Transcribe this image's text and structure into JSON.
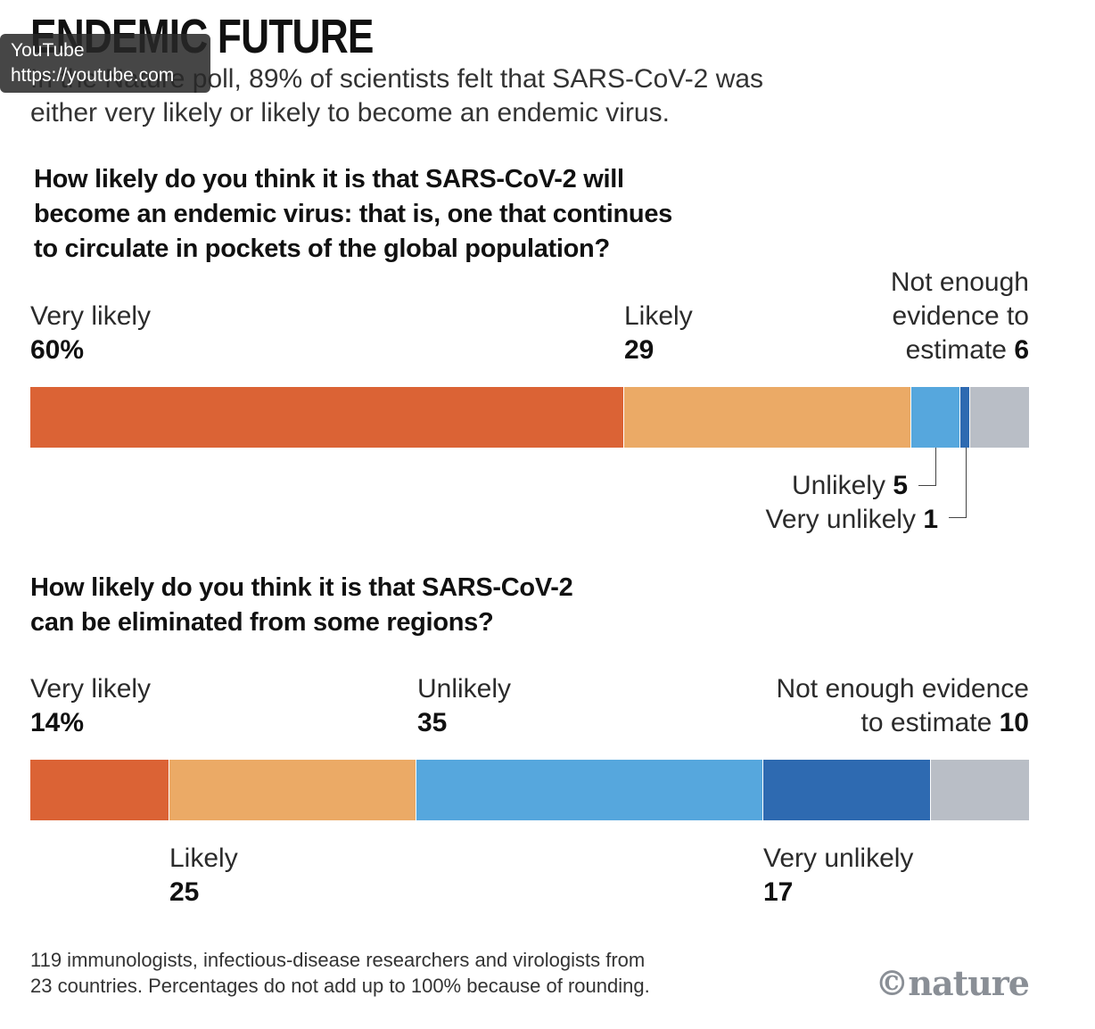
{
  "header": {
    "title": "ENDEMIC FUTURE",
    "intro_line1": "In the Nature poll, 89% of scientists felt that SARS-CoV-2 was",
    "intro_line2": "either very likely or likely to become an endemic virus."
  },
  "overlay": {
    "name": "YouTube",
    "url": "https://youtube.com"
  },
  "chart_data": [
    {
      "type": "bar",
      "stacked": true,
      "orientation": "horizontal",
      "title": "How likely do you think it is that SARS-CoV-2 will become an endemic virus: that is, one that continues to circulate in pockets of the global population?",
      "title_lines": [
        "How likely do you think it is that SARS-CoV-2 will",
        "become an endemic virus: that is, one that continues",
        "to circulate in pockets of the global population?"
      ],
      "unit": "%",
      "segments": [
        {
          "label": "Very likely",
          "value": 60,
          "display": "60%",
          "color": "#db6335"
        },
        {
          "label": "Likely",
          "value": 29,
          "display": "29",
          "color": "#ebaa66"
        },
        {
          "label": "Unlikely",
          "value": 5,
          "display": "5",
          "color": "#56a7dd"
        },
        {
          "label": "Very unlikely",
          "value": 1,
          "display": "1",
          "color": "#2e6ab1"
        },
        {
          "label": "Not enough evidence to estimate",
          "value": 6,
          "display": "6",
          "color": "#b9bec6"
        }
      ],
      "label_lines": {
        "very_likely": "Very likely",
        "likely": "Likely",
        "not_enough_1": "Not enough",
        "not_enough_2": "evidence to",
        "not_enough_3": "estimate",
        "unlikely": "Unlikely",
        "very_unlikely": "Very unlikely"
      }
    },
    {
      "type": "bar",
      "stacked": true,
      "orientation": "horizontal",
      "title": "How likely do you think it is that SARS-CoV-2 can be eliminated from some regions?",
      "title_lines": [
        "How likely do you think it is that SARS-CoV-2",
        "can be eliminated from some regions?"
      ],
      "unit": "%",
      "segments": [
        {
          "label": "Very likely",
          "value": 14,
          "display": "14%",
          "color": "#db6335"
        },
        {
          "label": "Likely",
          "value": 25,
          "display": "25",
          "color": "#ebaa66"
        },
        {
          "label": "Unlikely",
          "value": 35,
          "display": "35",
          "color": "#56a7dd"
        },
        {
          "label": "Very unlikely",
          "value": 17,
          "display": "17",
          "color": "#2e6ab1"
        },
        {
          "label": "Not enough evidence to estimate",
          "value": 10,
          "display": "10",
          "color": "#b9bec6"
        }
      ],
      "label_lines": {
        "very_likely": "Very likely",
        "likely": "Likely",
        "unlikely": "Unlikely",
        "very_unlikely": "Very unlikely",
        "not_enough_1": "Not enough evidence",
        "not_enough_2": "to estimate"
      }
    }
  ],
  "footer": {
    "note_line1": "119 immunologists, infectious-disease researchers and virologists from",
    "note_line2": "23 countries. Percentages do not add up to 100% because of rounding.",
    "logo": "©nature"
  }
}
